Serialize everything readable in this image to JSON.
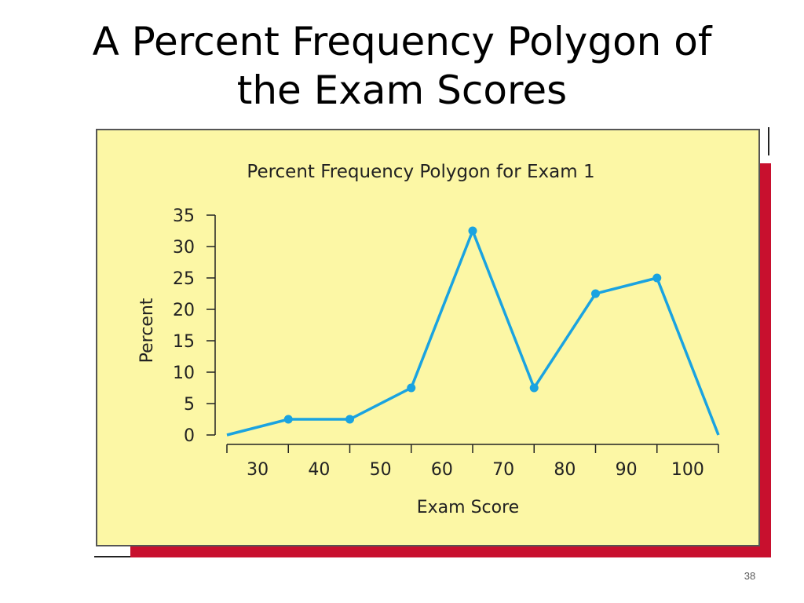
{
  "slide": {
    "title_lines": [
      "A Percent Frequency Polygon of",
      "the Exam Scores"
    ],
    "page_number": "38"
  },
  "colors": {
    "panel_background": "#fcf7a5",
    "line": "#1aa3e0",
    "accent": "#c8102e"
  },
  "chart_data": {
    "type": "line",
    "title": "Percent Frequency Polygon for Exam 1",
    "xlabel": "Exam Score",
    "ylabel": "Percent",
    "x": [
      25,
      35,
      45,
      55,
      65,
      75,
      85,
      95,
      105
    ],
    "series": [
      {
        "values": [
          0,
          2.5,
          2.5,
          7.5,
          32.5,
          7.5,
          22.5,
          25,
          0
        ],
        "markers": [
          false,
          true,
          true,
          true,
          true,
          true,
          true,
          true,
          false
        ]
      }
    ],
    "xlim": [
      25,
      105
    ],
    "ylim": [
      0,
      35
    ],
    "xticks": [
      30,
      40,
      50,
      60,
      70,
      80,
      90,
      100
    ],
    "xtick_labels": [
      "30",
      "40",
      "50",
      "60",
      "70",
      "80",
      "90",
      "100"
    ],
    "yticks": [
      0,
      5,
      10,
      15,
      20,
      25,
      30,
      35
    ],
    "ytick_labels": [
      "0",
      "5",
      "10",
      "15",
      "20",
      "25",
      "30",
      "35"
    ],
    "grid": false,
    "legend": "none"
  }
}
